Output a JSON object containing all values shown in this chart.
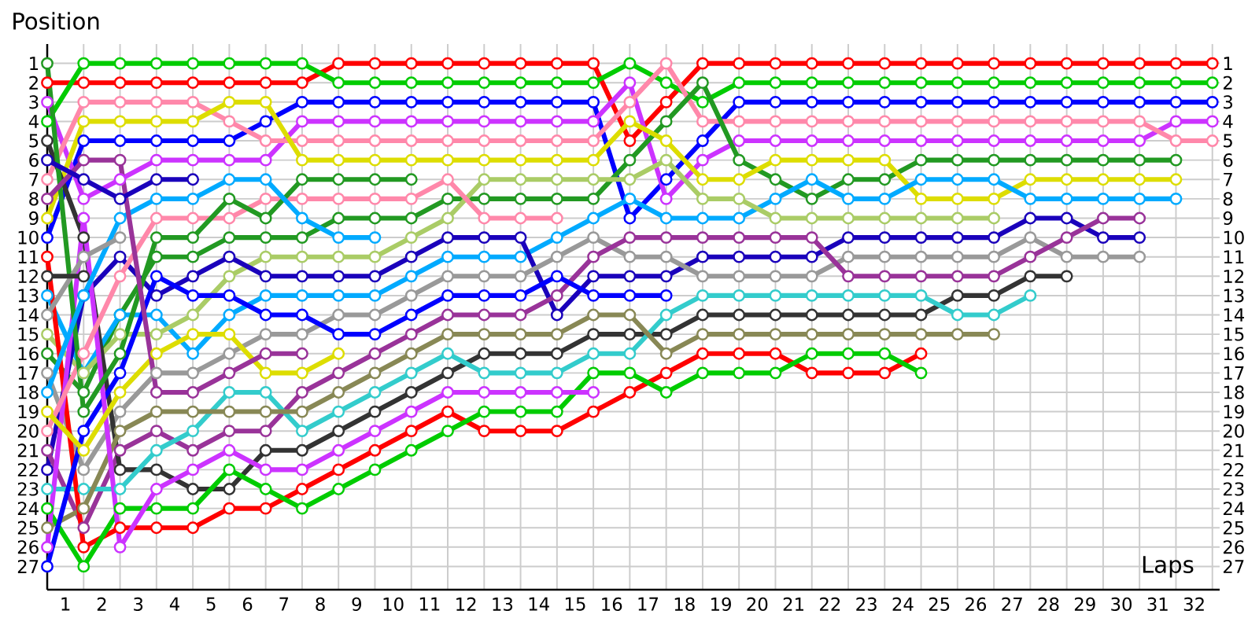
{
  "chart_data": {
    "type": "line",
    "xlabel": "Laps",
    "ylabel": "Position",
    "grid": true,
    "marker": "circle",
    "line_style": "solid",
    "x": [
      0,
      1,
      2,
      3,
      4,
      5,
      6,
      7,
      8,
      9,
      10,
      11,
      12,
      13,
      14,
      15,
      16,
      17,
      18,
      19,
      20,
      21,
      22,
      23,
      24,
      25,
      26,
      27,
      28,
      29,
      30,
      31,
      32
    ],
    "xlim": [
      0,
      32.2
    ],
    "ylim": [
      28.2,
      0
    ],
    "y2lim": [
      28.2,
      0
    ],
    "xticks": [
      {
        "value": 1,
        "label": null
      },
      {
        "value": 2,
        "label": null
      },
      {
        "value": 3,
        "label": null
      },
      {
        "value": 4,
        "label": null
      },
      {
        "value": 5,
        "label": null
      },
      {
        "value": 6,
        "label": null
      },
      {
        "value": 7,
        "label": null
      },
      {
        "value": 8,
        "label": null
      },
      {
        "value": 9,
        "label": null
      },
      {
        "value": 10,
        "label": null
      },
      {
        "value": 11,
        "label": null
      },
      {
        "value": 12,
        "label": null
      },
      {
        "value": 13,
        "label": null
      },
      {
        "value": 14,
        "label": null
      },
      {
        "value": 15,
        "label": null
      },
      {
        "value": 16,
        "label": null
      },
      {
        "value": 17,
        "label": null
      },
      {
        "value": 18,
        "label": null
      },
      {
        "value": 19,
        "label": null
      },
      {
        "value": 20,
        "label": null
      },
      {
        "value": 21,
        "label": null
      },
      {
        "value": 22,
        "label": null
      },
      {
        "value": 23,
        "label": null
      },
      {
        "value": 24,
        "label": null
      },
      {
        "value": 25,
        "label": null
      },
      {
        "value": 26,
        "label": null
      },
      {
        "value": 27,
        "label": null
      },
      {
        "value": 28,
        "label": null
      },
      {
        "value": 29,
        "label": null
      },
      {
        "value": 30,
        "label": null
      },
      {
        "value": 31,
        "label": null
      },
      {
        "value": 32,
        "label": null
      },
      {
        "value": 0.5,
        "label": "1"
      },
      {
        "value": 1.5,
        "label": "2"
      },
      {
        "value": 2.5,
        "label": "3"
      },
      {
        "value": 3.5,
        "label": "4"
      },
      {
        "value": 4.5,
        "label": "5"
      },
      {
        "value": 5.5,
        "label": "6"
      },
      {
        "value": 6.5,
        "label": "7"
      },
      {
        "value": 7.5,
        "label": "8"
      },
      {
        "value": 8.5,
        "label": "9"
      },
      {
        "value": 9.5,
        "label": "10"
      },
      {
        "value": 10.5,
        "label": "11"
      },
      {
        "value": 11.5,
        "label": "12"
      },
      {
        "value": 12.5,
        "label": "13"
      },
      {
        "value": 13.5,
        "label": "14"
      },
      {
        "value": 14.5,
        "label": "15"
      },
      {
        "value": 15.5,
        "label": "16"
      },
      {
        "value": 16.5,
        "label": "17"
      },
      {
        "value": 17.5,
        "label": "18"
      },
      {
        "value": 18.5,
        "label": "19"
      },
      {
        "value": 19.5,
        "label": "20"
      },
      {
        "value": 20.5,
        "label": "21"
      },
      {
        "value": 21.5,
        "label": "22"
      },
      {
        "value": 22.5,
        "label": "23"
      },
      {
        "value": 23.5,
        "label": "24"
      },
      {
        "value": 24.5,
        "label": "25"
      },
      {
        "value": 25.5,
        "label": "26"
      },
      {
        "value": 26.5,
        "label": "27"
      },
      {
        "value": 27.5,
        "label": "28"
      },
      {
        "value": 28.5,
        "label": "29"
      },
      {
        "value": 29.5,
        "label": "30"
      },
      {
        "value": 30.5,
        "label": "31"
      },
      {
        "value": 31.5,
        "label": "32"
      }
    ],
    "yticks": [
      1,
      2,
      3,
      4,
      5,
      6,
      7,
      8,
      9,
      10,
      11,
      12,
      13,
      14,
      15,
      16,
      17,
      18,
      19,
      20,
      21,
      22,
      23,
      24,
      25,
      26,
      27
    ],
    "y2ticks": [
      1,
      2,
      3,
      4,
      5,
      6,
      7,
      8,
      9,
      10,
      11,
      12,
      13,
      14,
      15,
      16,
      17,
      18,
      19,
      20,
      21,
      22,
      23,
      24,
      25,
      26,
      27
    ],
    "series": [
      {
        "color": "#ff0000",
        "values": [
          2,
          2,
          2,
          2,
          2,
          2,
          2,
          2,
          1,
          1,
          1,
          1,
          1,
          1,
          1,
          1,
          5,
          3,
          1,
          1,
          1,
          1,
          1,
          1,
          1,
          1,
          1,
          1,
          1,
          1,
          1,
          1,
          1
        ]
      },
      {
        "color": "#00cc00",
        "values": [
          4,
          1,
          1,
          1,
          1,
          1,
          1,
          1,
          2,
          2,
          2,
          2,
          2,
          2,
          2,
          2,
          1,
          2,
          3,
          2,
          2,
          2,
          2,
          2,
          2,
          2,
          2,
          2,
          2,
          2,
          2,
          2,
          2
        ]
      },
      {
        "color": "#0000ff",
        "values": [
          10,
          5,
          5,
          5,
          5,
          5,
          4,
          3,
          3,
          3,
          3,
          3,
          3,
          3,
          3,
          3,
          9,
          7,
          5,
          3,
          3,
          3,
          3,
          3,
          3,
          3,
          3,
          3,
          3,
          3,
          3,
          3,
          3
        ]
      },
      {
        "color": "#cc33ff",
        "values": [
          3,
          8,
          7,
          6,
          6,
          6,
          6,
          4,
          4,
          4,
          4,
          4,
          4,
          4,
          4,
          4,
          2,
          8,
          6,
          5,
          5,
          5,
          5,
          5,
          5,
          5,
          5,
          5,
          5,
          5,
          5,
          4,
          4
        ]
      },
      {
        "color": "#ff88aa",
        "values": [
          7,
          3,
          3,
          3,
          3,
          4,
          5,
          5,
          5,
          5,
          5,
          5,
          5,
          5,
          5,
          5,
          3,
          1,
          4,
          4,
          4,
          4,
          4,
          4,
          4,
          4,
          4,
          4,
          4,
          4,
          4,
          5,
          5
        ]
      },
      {
        "color": "#229922",
        "values": [
          16,
          18,
          14,
          11,
          11,
          10,
          10,
          10,
          9,
          9,
          9,
          8,
          8,
          8,
          8,
          8,
          6,
          4,
          2,
          6,
          7,
          8,
          7,
          7,
          6,
          6,
          6,
          6,
          6,
          6,
          6,
          6,
          null
        ]
      },
      {
        "color": "#dddd00",
        "values": [
          9,
          4,
          4,
          4,
          4,
          3,
          3,
          6,
          6,
          6,
          6,
          6,
          6,
          6,
          6,
          6,
          4,
          5,
          7,
          7,
          6,
          6,
          6,
          6,
          8,
          8,
          8,
          7,
          7,
          7,
          7,
          7,
          null
        ]
      },
      {
        "color": "#00aaff",
        "values": [
          13,
          17,
          14,
          14,
          16,
          14,
          13,
          13,
          13,
          13,
          12,
          11,
          11,
          11,
          10,
          9,
          8,
          9,
          9,
          9,
          8,
          7,
          8,
          8,
          7,
          7,
          7,
          8,
          8,
          8,
          8,
          8,
          null
        ]
      },
      {
        "color": "#aacc66",
        "values": [
          15,
          17,
          15,
          15,
          14,
          12,
          11,
          11,
          11,
          11,
          10,
          9,
          7,
          7,
          7,
          7,
          7,
          6,
          8,
          8,
          9,
          9,
          9,
          9,
          9,
          9,
          9,
          null,
          null,
          null,
          null,
          null,
          null
        ]
      },
      {
        "color": "#1a00bb",
        "values": [
          22,
          13,
          11,
          13,
          12,
          11,
          12,
          12,
          12,
          12,
          11,
          10,
          10,
          10,
          14,
          12,
          12,
          12,
          11,
          11,
          11,
          11,
          10,
          10,
          10,
          10,
          10,
          9,
          9,
          10,
          10,
          null,
          null
        ]
      },
      {
        "color": "#999999",
        "values": [
          17,
          22,
          19,
          17,
          17,
          16,
          15,
          15,
          14,
          14,
          13,
          12,
          12,
          12,
          11,
          10,
          11,
          11,
          12,
          12,
          12,
          12,
          11,
          11,
          11,
          11,
          11,
          10,
          11,
          11,
          11,
          null,
          null
        ]
      },
      {
        "color": "#993399",
        "values": [
          21,
          25,
          21,
          20,
          21,
          20,
          20,
          18,
          17,
          16,
          15,
          14,
          14,
          14,
          13,
          11,
          10,
          10,
          10,
          10,
          10,
          10,
          12,
          12,
          12,
          12,
          12,
          11,
          10,
          9,
          9,
          null,
          null
        ]
      },
      {
        "color": "#333333",
        "values": [
          5,
          10,
          22,
          22,
          23,
          23,
          21,
          21,
          20,
          19,
          18,
          17,
          16,
          16,
          16,
          15,
          15,
          15,
          14,
          14,
          14,
          14,
          14,
          14,
          14,
          13,
          13,
          12,
          12,
          null,
          null,
          null,
          null
        ]
      },
      {
        "color": "#33cccc",
        "values": [
          23,
          23,
          23,
          21,
          20,
          18,
          18,
          20,
          19,
          18,
          17,
          16,
          17,
          17,
          17,
          16,
          16,
          14,
          13,
          13,
          13,
          13,
          13,
          13,
          13,
          14,
          14,
          13,
          null,
          null,
          null,
          null,
          null
        ]
      },
      {
        "color": "#888855",
        "values": [
          25,
          24,
          20,
          19,
          19,
          19,
          19,
          19,
          18,
          17,
          16,
          15,
          15,
          15,
          15,
          14,
          14,
          16,
          15,
          15,
          15,
          15,
          15,
          15,
          15,
          15,
          15,
          null,
          null,
          null,
          null,
          null,
          null
        ]
      },
      {
        "color": "#ff0000",
        "values": [
          11,
          26,
          25,
          25,
          25,
          24,
          24,
          23,
          22,
          21,
          20,
          19,
          20,
          20,
          20,
          19,
          18,
          17,
          16,
          16,
          16,
          17,
          17,
          17,
          16,
          null,
          null,
          null,
          null,
          null,
          null,
          null,
          null
        ]
      },
      {
        "color": "#00cc00",
        "values": [
          24,
          27,
          24,
          24,
          24,
          22,
          23,
          24,
          23,
          22,
          21,
          20,
          19,
          19,
          19,
          17,
          17,
          18,
          17,
          17,
          17,
          16,
          16,
          16,
          17,
          null,
          null,
          null,
          null,
          null,
          null,
          null,
          null
        ]
      },
      {
        "color": "#0000ff",
        "values": [
          27,
          20,
          17,
          12,
          13,
          13,
          14,
          14,
          15,
          15,
          14,
          13,
          13,
          13,
          12,
          13,
          13,
          13,
          null,
          null,
          null,
          null,
          null,
          null,
          null,
          null,
          null,
          null,
          null,
          null,
          null,
          null,
          null
        ]
      },
      {
        "color": "#cc33ff",
        "values": [
          26,
          9,
          26,
          23,
          22,
          21,
          22,
          22,
          21,
          20,
          19,
          18,
          18,
          18,
          18,
          18,
          null,
          null,
          null,
          null,
          null,
          null,
          null,
          null,
          null,
          null,
          null,
          null,
          null,
          null,
          null,
          null,
          null
        ]
      },
      {
        "color": "#ff88aa",
        "values": [
          20,
          16,
          12,
          9,
          9,
          9,
          8,
          8,
          8,
          8,
          8,
          7,
          9,
          9,
          9,
          null,
          null,
          null,
          null,
          null,
          null,
          null,
          null,
          null,
          null,
          null,
          null,
          null,
          null,
          null,
          null,
          null,
          null
        ]
      },
      {
        "color": "#229922",
        "values": [
          1,
          19,
          16,
          10,
          10,
          8,
          9,
          7,
          7,
          7,
          7,
          null,
          null,
          null,
          null,
          null,
          null,
          null,
          null,
          null,
          null,
          null,
          null,
          null,
          null,
          null,
          null,
          null,
          null,
          null,
          null,
          null,
          null
        ]
      },
      {
        "color": "#00aaff",
        "values": [
          18,
          13,
          9,
          8,
          8,
          7,
          7,
          9,
          10,
          10,
          null,
          null,
          null,
          null,
          null,
          null,
          null,
          null,
          null,
          null,
          null,
          null,
          null,
          null,
          null,
          null,
          null,
          null,
          null,
          null,
          null,
          null,
          null
        ]
      },
      {
        "color": "#dddd00",
        "values": [
          19,
          21,
          18,
          16,
          15,
          15,
          17,
          17,
          16,
          null,
          null,
          null,
          null,
          null,
          null,
          null,
          null,
          null,
          null,
          null,
          null,
          null,
          null,
          null,
          null,
          null,
          null,
          null,
          null,
          null,
          null,
          null,
          null
        ]
      },
      {
        "color": "#993399",
        "values": [
          8,
          6,
          6,
          18,
          18,
          17,
          16,
          16,
          null,
          null,
          null,
          null,
          null,
          null,
          null,
          null,
          null,
          null,
          null,
          null,
          null,
          null,
          null,
          null,
          null,
          null,
          null,
          null,
          null,
          null,
          null,
          null,
          null
        ]
      },
      {
        "color": "#1a00bb",
        "values": [
          6,
          7,
          8,
          7,
          7,
          null,
          null,
          null,
          null,
          null,
          null,
          null,
          null,
          null,
          null,
          null,
          null,
          null,
          null,
          null,
          null,
          null,
          null,
          null,
          null,
          null,
          null,
          null,
          null,
          null,
          null,
          null,
          null
        ]
      },
      {
        "color": "#999999",
        "values": [
          14,
          11,
          10,
          null,
          null,
          null,
          null,
          null,
          null,
          null,
          null,
          null,
          null,
          null,
          null,
          null,
          null,
          null,
          null,
          null,
          null,
          null,
          null,
          null,
          null,
          null,
          null,
          null,
          null,
          null,
          null,
          null,
          null
        ]
      },
      {
        "color": "#333333",
        "values": [
          12,
          12,
          null,
          null,
          null,
          null,
          null,
          null,
          null,
          null,
          null,
          null,
          null,
          null,
          null,
          null,
          null,
          null,
          null,
          null,
          null,
          null,
          null,
          null,
          null,
          null,
          null,
          null,
          null,
          null,
          null,
          null,
          null
        ]
      }
    ]
  }
}
